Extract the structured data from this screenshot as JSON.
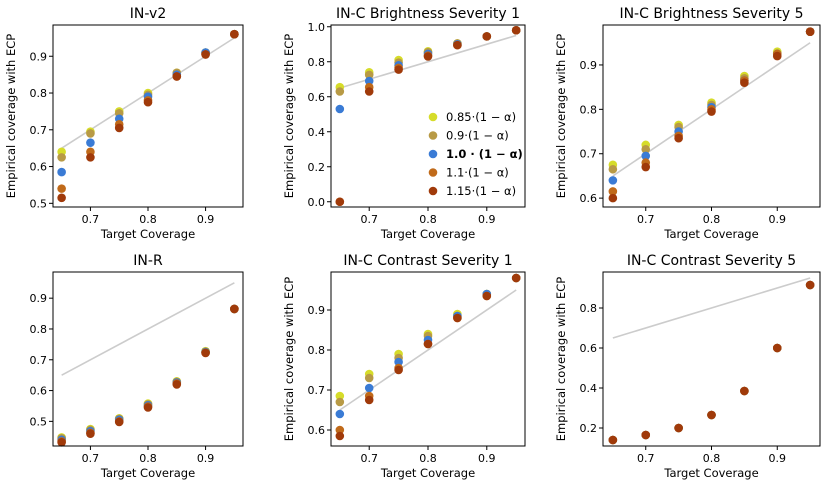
{
  "palette": {
    "0.85": "#d6dc2a",
    "0.9": "#b89a45",
    "1.0": "#3a7bd5",
    "1.1": "#c06a1a",
    "1.15": "#a03a0a",
    "ref_line": "#cccccc",
    "axis": "#000000"
  },
  "legend": {
    "entries": [
      {
        "key": "0.85",
        "label": "0.85·(1 − α)",
        "bold": false
      },
      {
        "key": "0.9",
        "label": "0.9·(1 − α)",
        "bold": false
      },
      {
        "key": "1.0",
        "label": "1.0 · (1 − α)",
        "bold": true
      },
      {
        "key": "1.1",
        "label": "1.1·(1 − α)",
        "bold": false
      },
      {
        "key": "1.15",
        "label": "1.15·(1 − α)",
        "bold": false
      }
    ]
  },
  "chart_data": [
    {
      "type": "scatter",
      "title": "IN-v2",
      "xlabel": "Target Coverage",
      "ylabel": "Empirical coverage with ECP",
      "xlim": [
        0.635,
        0.965
      ],
      "ylim": [
        0.49,
        0.985
      ],
      "xticks": [
        "0.7",
        "0.8",
        "0.9"
      ],
      "yticks": [
        "0.5",
        "0.6",
        "0.7",
        "0.8",
        "0.9"
      ],
      "x": [
        0.65,
        0.7,
        0.75,
        0.8,
        0.85,
        0.9,
        0.95
      ],
      "reference_line": [
        [
          0.65,
          0.65
        ],
        [
          0.95,
          0.95
        ]
      ],
      "series": [
        {
          "name": "0.85",
          "values": [
            0.64,
            0.695,
            0.75,
            0.8,
            0.855,
            0.91,
            0.96
          ]
        },
        {
          "name": "0.9",
          "values": [
            0.625,
            0.69,
            0.745,
            0.795,
            0.855,
            0.91,
            0.96
          ]
        },
        {
          "name": "1.0",
          "values": [
            0.585,
            0.665,
            0.73,
            0.79,
            0.85,
            0.91,
            0.96
          ]
        },
        {
          "name": "1.1",
          "values": [
            0.54,
            0.64,
            0.715,
            0.78,
            0.845,
            0.905,
            0.96
          ]
        },
        {
          "name": "1.15",
          "values": [
            0.515,
            0.625,
            0.705,
            0.775,
            0.845,
            0.905,
            0.96
          ]
        }
      ]
    },
    {
      "type": "scatter",
      "title": "IN-C Brightness Severity 1",
      "xlabel": "Target Coverage",
      "ylabel": "Empirical coverage with ECP",
      "xlim": [
        0.635,
        0.965
      ],
      "ylim": [
        -0.03,
        1.01
      ],
      "xticks": [
        "0.7",
        "0.8",
        "0.9"
      ],
      "yticks": [
        "0.0",
        "0.2",
        "0.4",
        "0.6",
        "0.8",
        "1.0"
      ],
      "x": [
        0.65,
        0.7,
        0.75,
        0.8,
        0.85,
        0.9,
        0.95
      ],
      "reference_line": [
        [
          0.65,
          0.65
        ],
        [
          0.95,
          0.95
        ]
      ],
      "series": [
        {
          "name": "0.85",
          "values": [
            0.655,
            0.74,
            0.81,
            0.86,
            0.905,
            0.945,
            0.98
          ]
        },
        {
          "name": "0.9",
          "values": [
            0.63,
            0.725,
            0.795,
            0.855,
            0.905,
            0.945,
            0.98
          ]
        },
        {
          "name": "1.0",
          "values": [
            0.53,
            0.69,
            0.78,
            0.845,
            0.9,
            0.945,
            0.98
          ]
        },
        {
          "name": "1.1",
          "values": [
            0.0,
            0.655,
            0.765,
            0.835,
            0.895,
            0.945,
            0.98
          ]
        },
        {
          "name": "1.15",
          "values": [
            0.0,
            0.63,
            0.755,
            0.83,
            0.895,
            0.945,
            0.98
          ]
        }
      ]
    },
    {
      "type": "scatter",
      "title": "IN-C Brightness Severity 5",
      "xlabel": "Target Coverage",
      "ylabel": "Empirical coverage with ECP",
      "xlim": [
        0.635,
        0.965
      ],
      "ylim": [
        0.58,
        0.99
      ],
      "xticks": [
        "0.7",
        "0.8",
        "0.9"
      ],
      "yticks": [
        "0.6",
        "0.7",
        "0.8",
        "0.9"
      ],
      "x": [
        0.65,
        0.7,
        0.75,
        0.8,
        0.85,
        0.9,
        0.95
      ],
      "reference_line": [
        [
          0.65,
          0.65
        ],
        [
          0.95,
          0.95
        ]
      ],
      "series": [
        {
          "name": "0.85",
          "values": [
            0.675,
            0.72,
            0.765,
            0.815,
            0.875,
            0.93,
            0.975
          ]
        },
        {
          "name": "0.9",
          "values": [
            0.665,
            0.71,
            0.76,
            0.81,
            0.87,
            0.925,
            0.975
          ]
        },
        {
          "name": "1.0",
          "values": [
            0.64,
            0.695,
            0.75,
            0.805,
            0.865,
            0.925,
            0.975
          ]
        },
        {
          "name": "1.1",
          "values": [
            0.615,
            0.68,
            0.74,
            0.8,
            0.865,
            0.925,
            0.975
          ]
        },
        {
          "name": "1.15",
          "values": [
            0.6,
            0.67,
            0.735,
            0.795,
            0.86,
            0.92,
            0.975
          ]
        }
      ]
    },
    {
      "type": "scatter",
      "title": "IN-R",
      "xlabel": "Target Coverage",
      "ylabel": "",
      "xlim": [
        0.635,
        0.965
      ],
      "ylim": [
        0.42,
        0.985
      ],
      "xticks": [
        "0.7",
        "0.8",
        "0.9"
      ],
      "yticks": [
        "0.5",
        "0.6",
        "0.7",
        "0.8",
        "0.9"
      ],
      "x": [
        0.65,
        0.7,
        0.75,
        0.8,
        0.85,
        0.9,
        0.95
      ],
      "reference_line": [
        [
          0.65,
          0.65
        ],
        [
          0.95,
          0.95
        ]
      ],
      "series": [
        {
          "name": "0.85",
          "values": [
            0.448,
            0.475,
            0.51,
            0.558,
            0.63,
            0.728,
            0.865
          ]
        },
        {
          "name": "0.9",
          "values": [
            0.445,
            0.472,
            0.508,
            0.555,
            0.628,
            0.726,
            0.865
          ]
        },
        {
          "name": "1.0",
          "values": [
            0.44,
            0.468,
            0.505,
            0.552,
            0.626,
            0.725,
            0.865
          ]
        },
        {
          "name": "1.1",
          "values": [
            0.435,
            0.463,
            0.5,
            0.548,
            0.623,
            0.723,
            0.865
          ]
        },
        {
          "name": "1.15",
          "values": [
            0.432,
            0.46,
            0.498,
            0.545,
            0.62,
            0.722,
            0.865
          ]
        }
      ]
    },
    {
      "type": "scatter",
      "title": "IN-C Contrast Severity 1",
      "xlabel": "Target Coverage",
      "ylabel": "Empirical coverage with ECP",
      "xlim": [
        0.635,
        0.965
      ],
      "ylim": [
        0.56,
        0.995
      ],
      "xticks": [
        "0.7",
        "0.8",
        "0.9"
      ],
      "yticks": [
        "0.6",
        "0.7",
        "0.8",
        "0.9"
      ],
      "x": [
        0.65,
        0.7,
        0.75,
        0.8,
        0.85,
        0.9,
        0.95
      ],
      "reference_line": [
        [
          0.65,
          0.65
        ],
        [
          0.95,
          0.95
        ]
      ],
      "series": [
        {
          "name": "0.85",
          "values": [
            0.685,
            0.74,
            0.79,
            0.84,
            0.89,
            0.94,
            0.98
          ]
        },
        {
          "name": "0.9",
          "values": [
            0.67,
            0.73,
            0.78,
            0.835,
            0.885,
            0.94,
            0.98
          ]
        },
        {
          "name": "1.0",
          "values": [
            0.64,
            0.705,
            0.77,
            0.825,
            0.885,
            0.94,
            0.98
          ]
        },
        {
          "name": "1.1",
          "values": [
            0.6,
            0.685,
            0.755,
            0.815,
            0.88,
            0.935,
            0.98
          ]
        },
        {
          "name": "1.15",
          "values": [
            0.585,
            0.675,
            0.75,
            0.815,
            0.88,
            0.935,
            0.98
          ]
        }
      ]
    },
    {
      "type": "scatter",
      "title": "IN-C Contrast Severity 5",
      "xlabel": "Target Coverage",
      "ylabel": "Empirical coverage with ECP",
      "xlim": [
        0.635,
        0.965
      ],
      "ylim": [
        0.11,
        0.98
      ],
      "xticks": [
        "0.7",
        "0.8",
        "0.9"
      ],
      "yticks": [
        "0.2",
        "0.4",
        "0.6",
        "0.8"
      ],
      "x": [
        0.65,
        0.7,
        0.75,
        0.8,
        0.85,
        0.9,
        0.95
      ],
      "reference_line": [
        [
          0.65,
          0.65
        ],
        [
          0.95,
          0.95
        ]
      ],
      "series": [
        {
          "name": "0.85",
          "values": [
            0.14,
            0.165,
            0.2,
            0.265,
            0.385,
            0.6,
            0.915
          ]
        },
        {
          "name": "0.9",
          "values": [
            0.14,
            0.165,
            0.2,
            0.265,
            0.385,
            0.6,
            0.915
          ]
        },
        {
          "name": "1.0",
          "values": [
            0.14,
            0.165,
            0.2,
            0.265,
            0.385,
            0.6,
            0.915
          ]
        },
        {
          "name": "1.1",
          "values": [
            0.14,
            0.165,
            0.2,
            0.265,
            0.385,
            0.6,
            0.915
          ]
        },
        {
          "name": "1.15",
          "values": [
            0.14,
            0.165,
            0.2,
            0.265,
            0.385,
            0.6,
            0.915
          ]
        }
      ]
    }
  ]
}
